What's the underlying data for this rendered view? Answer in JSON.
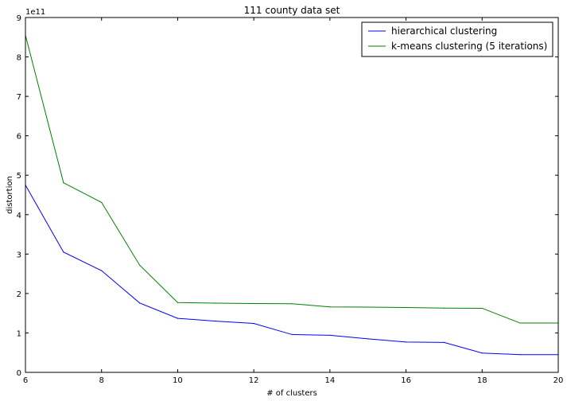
{
  "chart_data": {
    "type": "line",
    "title": "111 county data set",
    "xlabel": "# of clusters",
    "ylabel": "distortion",
    "y_offset_label": "1e11",
    "xlim": [
      6,
      20
    ],
    "ylim": [
      0,
      9
    ],
    "x_ticks": [
      6,
      8,
      10,
      12,
      14,
      16,
      18,
      20
    ],
    "y_ticks": [
      0,
      1,
      2,
      3,
      4,
      5,
      6,
      7,
      8,
      9
    ],
    "grid": false,
    "legend_position": "top-right",
    "x": [
      6,
      7,
      8,
      9,
      10,
      11,
      12,
      13,
      14,
      15,
      16,
      17,
      18,
      19,
      20
    ],
    "series": [
      {
        "name": "hierarchical clustering",
        "color": "#0000ff",
        "values": [
          4.75,
          3.05,
          2.58,
          1.76,
          1.37,
          1.3,
          1.24,
          0.96,
          0.94,
          0.85,
          0.77,
          0.76,
          0.49,
          0.45,
          0.45
        ]
      },
      {
        "name": "k-means clustering (5 iterations)",
        "color": "#008000",
        "values": [
          8.55,
          4.81,
          4.31,
          2.72,
          1.77,
          1.755,
          1.745,
          1.74,
          1.66,
          1.655,
          1.645,
          1.63,
          1.625,
          1.25,
          1.25
        ]
      }
    ]
  }
}
